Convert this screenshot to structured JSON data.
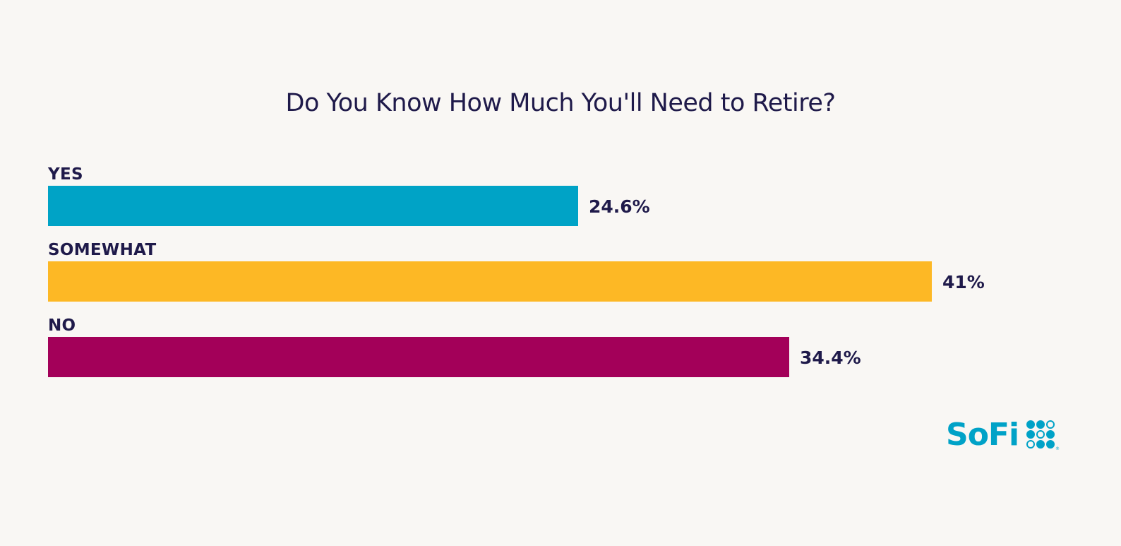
{
  "chart_data": {
    "type": "bar",
    "orientation": "horizontal",
    "title": "Do You Know How Much You'll Need to Retire?",
    "categories": [
      "YES",
      "SOMEWHAT",
      "NO"
    ],
    "values": [
      24.6,
      41,
      34.4
    ],
    "value_labels": [
      "24.6%",
      "41%",
      "34.4%"
    ],
    "colors": [
      "#00a3c6",
      "#fdb825",
      "#a30059"
    ],
    "xlabel": "",
    "ylabel": "",
    "unit": "%",
    "xlim": [
      0,
      41
    ],
    "grid": false,
    "legend": "none"
  },
  "branding": {
    "logo_text": "SoFi",
    "logo_color": "#00a2c7",
    "registered_mark": "®"
  },
  "colors": {
    "background": "#f9f7f4",
    "text": "#1f1a4a"
  }
}
